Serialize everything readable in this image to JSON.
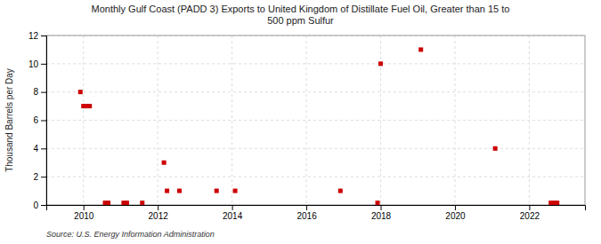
{
  "chart_data": {
    "type": "scatter",
    "title": "Monthly Gulf Coast (PADD 3) Exports to United Kingdom of Distillate Fuel Oil, Greater than 15 to\n500 ppm Sulfur",
    "ylabel": "Thousand Barrels per Day",
    "annotations": [
      "Source: U.S. Energy Information Administration"
    ],
    "color": "#cc0000",
    "marker": "square",
    "grid": true,
    "xlim": [
      2009.0,
      2023.5
    ],
    "ylim": [
      0,
      12
    ],
    "xticks": [
      2010,
      2012,
      2014,
      2016,
      2018,
      2020,
      2022
    ],
    "yticks": [
      0,
      2,
      4,
      6,
      8,
      10,
      12
    ],
    "x": [
      2009.917,
      2010.0,
      2010.083,
      2010.167,
      2010.583,
      2010.667,
      2011.083,
      2011.167,
      2011.583,
      2012.167,
      2012.25,
      2012.583,
      2013.583,
      2014.083,
      2016.917,
      2017.917,
      2018.0,
      2019.083,
      2021.083,
      2022.583,
      2022.667,
      2022.75
    ],
    "values": [
      8.0,
      7.0,
      7.0,
      7.0,
      0.15,
      0.15,
      0.15,
      0.15,
      0.15,
      3.0,
      1.0,
      1.0,
      1.0,
      1.0,
      1.0,
      0.15,
      10.0,
      11.0,
      4.0,
      0.15,
      0.15,
      0.15
    ]
  }
}
